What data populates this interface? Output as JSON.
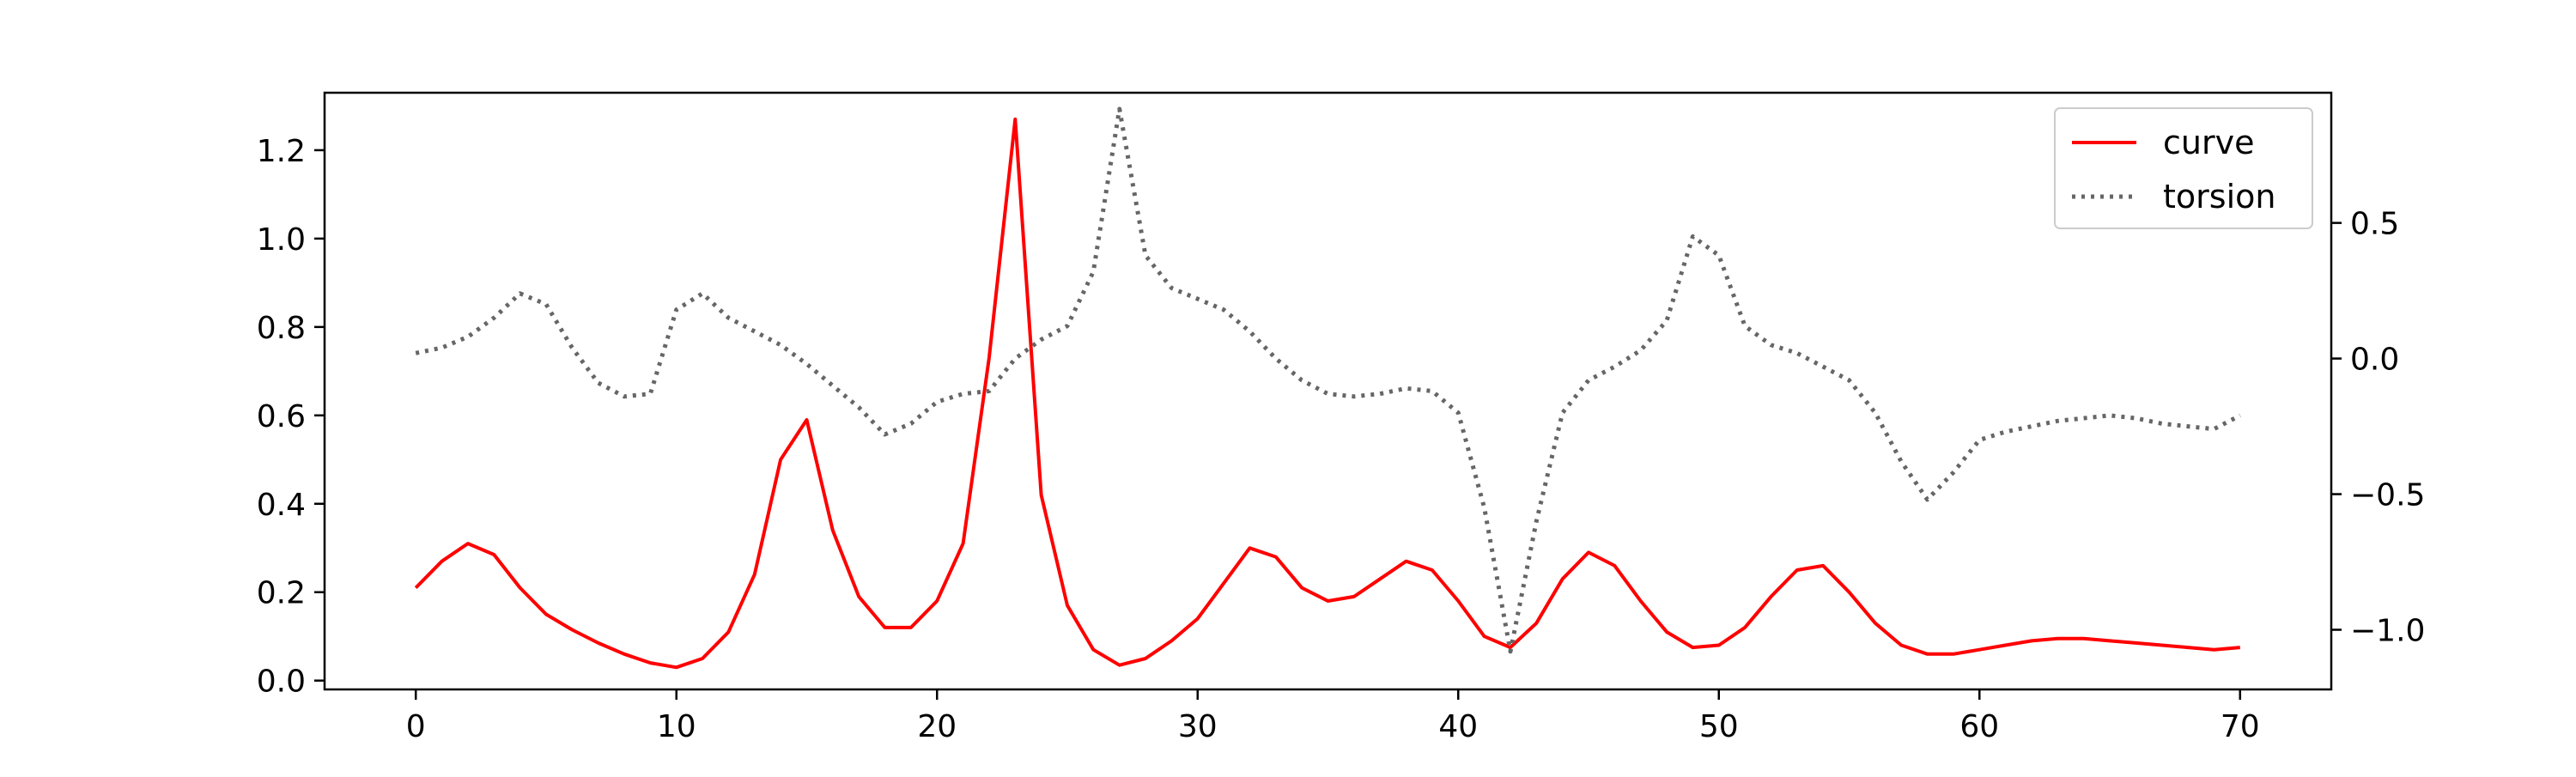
{
  "chart_data": {
    "type": "line",
    "title": "",
    "xlabel": "",
    "ylabel": "",
    "y2label": "",
    "xlim": [
      -3.5,
      73.5
    ],
    "ylim": [
      -0.02,
      1.33
    ],
    "y2lim": [
      -1.22,
      0.98
    ],
    "xticks": [
      0,
      10,
      20,
      30,
      40,
      50,
      60,
      70
    ],
    "yticks": [
      0.0,
      0.2,
      0.4,
      0.6,
      0.8,
      1.0,
      1.2
    ],
    "y2ticks": [
      -1.0,
      -0.5,
      0.0,
      0.5
    ],
    "xtick_labels": [
      "0",
      "10",
      "20",
      "30",
      "40",
      "50",
      "60",
      "70"
    ],
    "ytick_labels": [
      "0.0",
      "0.2",
      "0.4",
      "0.6",
      "0.8",
      "1.0",
      "1.2"
    ],
    "y2tick_labels": [
      "−1.0",
      "−0.5",
      "0.0",
      "0.5"
    ],
    "grid": false,
    "legend_position": "top-right",
    "series": [
      {
        "name": "curve",
        "axis": "left",
        "color": "#ff0000",
        "style": "solid",
        "x": [
          0,
          1,
          2,
          3,
          4,
          5,
          6,
          7,
          8,
          9,
          10,
          11,
          12,
          13,
          14,
          15,
          16,
          17,
          18,
          19,
          20,
          21,
          22,
          23,
          24,
          25,
          26,
          27,
          28,
          29,
          30,
          31,
          32,
          33,
          34,
          35,
          36,
          37,
          38,
          39,
          40,
          41,
          42,
          43,
          44,
          45,
          46,
          47,
          48,
          49,
          50,
          51,
          52,
          53,
          54,
          55,
          56,
          57,
          58,
          59,
          60,
          61,
          62,
          63,
          64,
          65,
          66,
          67,
          68,
          69,
          70
        ],
        "values": [
          0.21,
          0.27,
          0.31,
          0.285,
          0.21,
          0.15,
          0.115,
          0.085,
          0.06,
          0.04,
          0.03,
          0.05,
          0.11,
          0.24,
          0.5,
          0.59,
          0.34,
          0.19,
          0.12,
          0.12,
          0.18,
          0.31,
          0.73,
          1.27,
          0.42,
          0.17,
          0.07,
          0.035,
          0.05,
          0.09,
          0.14,
          0.22,
          0.3,
          0.28,
          0.21,
          0.18,
          0.19,
          0.23,
          0.27,
          0.25,
          0.18,
          0.1,
          0.075,
          0.13,
          0.23,
          0.29,
          0.26,
          0.18,
          0.11,
          0.075,
          0.08,
          0.12,
          0.19,
          0.25,
          0.26,
          0.2,
          0.13,
          0.08,
          0.06,
          0.06,
          0.07,
          0.08,
          0.09,
          0.095,
          0.095,
          0.09,
          0.085,
          0.08,
          0.075,
          0.07,
          0.075
        ]
      },
      {
        "name": "torsion",
        "axis": "right",
        "color": "#666666",
        "style": "dotted",
        "x": [
          0,
          1,
          2,
          3,
          4,
          5,
          6,
          7,
          8,
          9,
          10,
          11,
          12,
          13,
          14,
          15,
          16,
          17,
          18,
          19,
          20,
          21,
          22,
          23,
          24,
          25,
          26,
          27,
          28,
          29,
          30,
          31,
          32,
          33,
          34,
          35,
          36,
          37,
          38,
          39,
          40,
          41,
          42,
          43,
          44,
          45,
          46,
          47,
          48,
          49,
          50,
          51,
          52,
          53,
          54,
          55,
          56,
          57,
          58,
          59,
          60,
          61,
          62,
          63,
          64,
          65,
          66,
          67,
          68,
          69,
          70
        ],
        "values": [
          0.02,
          0.04,
          0.08,
          0.15,
          0.24,
          0.2,
          0.04,
          -0.09,
          -0.14,
          -0.13,
          0.18,
          0.24,
          0.15,
          0.1,
          0.05,
          -0.02,
          -0.1,
          -0.18,
          -0.28,
          -0.24,
          -0.16,
          -0.13,
          -0.12,
          0.0,
          0.07,
          0.12,
          0.32,
          0.92,
          0.38,
          0.26,
          0.22,
          0.18,
          0.1,
          0.0,
          -0.08,
          -0.13,
          -0.14,
          -0.13,
          -0.11,
          -0.12,
          -0.2,
          -0.55,
          -1.08,
          -0.6,
          -0.2,
          -0.08,
          -0.03,
          0.03,
          0.14,
          0.45,
          0.38,
          0.12,
          0.05,
          0.02,
          -0.03,
          -0.08,
          -0.2,
          -0.38,
          -0.52,
          -0.42,
          -0.3,
          -0.27,
          -0.25,
          -0.23,
          -0.22,
          -0.21,
          -0.22,
          -0.24,
          -0.25,
          -0.26,
          -0.21
        ]
      }
    ]
  }
}
